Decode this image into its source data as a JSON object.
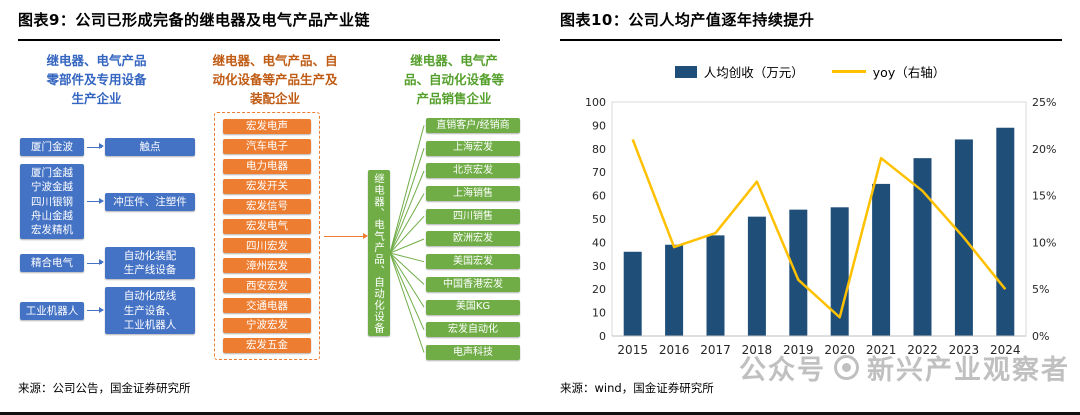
{
  "figure9": {
    "title": "图表9：公司已形成完备的继电器及电气产品产业链",
    "source": "来源：公司公告，国金证券研究所",
    "producer_header": "继电器、电气产品\n零部件及专用设备\n生产企业",
    "assembly_header": "继电器、电气产品、自\n动化设备等产品生产及\n装配企业",
    "sales_header": "继电器、电气产\n品、自动化设备等\n产品销售企业",
    "producer_rows": [
      {
        "company": "厦门金波",
        "product": "触点"
      },
      {
        "company": "厦门金越\n宁波金越\n四川银钢\n舟山金越\n宏发精机",
        "product": "冲压件、注塑件"
      },
      {
        "company": "精合电气",
        "product": "自动化装配\n生产线设备"
      },
      {
        "company": "工业机器人",
        "product": "自动化成线\n生产设备、\n工业机器人"
      }
    ],
    "assembly_companies": [
      "宏发电声",
      "汽车电子",
      "电力电器",
      "宏发开关",
      "宏发信号",
      "宏发电气",
      "四川宏发",
      "漳州宏发",
      "西安宏发",
      "交通电器",
      "宁波宏发",
      "宏发五金"
    ],
    "hub_label": "继电器、电气产品、自动化设备等",
    "sales_companies": [
      "直销客户/经销商",
      "上海宏发",
      "北京宏发",
      "上海销售",
      "四川销售",
      "欧洲宏发",
      "美国宏发",
      "中国香港宏发",
      "美国KG",
      "宏发自动化",
      "电声科技"
    ],
    "colors": {
      "producer_box": "#4472C4",
      "assembly_box": "#ED7D31",
      "sales_box": "#70AD47",
      "hub_box": "#70AD47"
    }
  },
  "figure10": {
    "title": "图表10：公司人均产值逐年持续提升",
    "source": "来源：wind，国金证券研究所"
  },
  "chart_data": {
    "type": "bar",
    "title": "公司人均产值逐年持续提升",
    "categories": [
      "2015",
      "2016",
      "2017",
      "2018",
      "2019",
      "2020",
      "2021",
      "2022",
      "2023",
      "2024"
    ],
    "series": [
      {
        "name": "人均创收（万元）",
        "type": "bar",
        "axis": "left",
        "color": "#1F4E79",
        "values": [
          36,
          39,
          43,
          51,
          54,
          55,
          65,
          76,
          84,
          89
        ]
      },
      {
        "name": "yoy（右轴）",
        "type": "line",
        "axis": "right",
        "color": "#FFC000",
        "values": [
          21,
          9.5,
          11,
          16.5,
          6,
          2,
          19,
          15.5,
          10.5,
          5
        ]
      }
    ],
    "left_axis": {
      "min": 0,
      "max": 100,
      "step": 10
    },
    "right_axis": {
      "min": 0,
      "max": 25,
      "step": 5,
      "suffix": "%"
    },
    "legend_position": "top",
    "gridlines": false
  },
  "watermark": {
    "prefix": "公众号",
    "suffix": "新兴产业观察者"
  }
}
